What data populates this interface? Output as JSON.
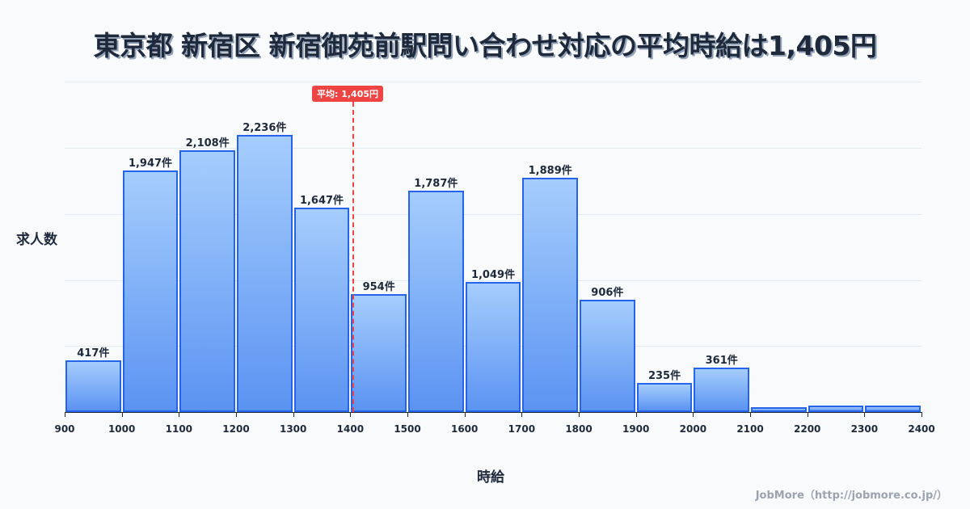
{
  "title": "東京都 新宿区 新宿御苑前駅問い合わせ対応の平均時給は1,405円",
  "y_axis_label": "求人数",
  "x_axis_label": "時給",
  "average_badge": "平均: 1,405円",
  "credit": "JobMore（http://jobmore.co.jp/）",
  "colors": {
    "bar_fill_top": "#a5cdfc",
    "bar_fill_bottom": "#5b93f2",
    "bar_border": "#2563eb",
    "average_line": "#ef4444",
    "text": "#1e293b"
  },
  "chart_data": {
    "type": "bar",
    "title": "東京都 新宿区 新宿御苑前駅問い合わせ対応の平均時給は1,405円",
    "xlabel": "時給",
    "ylabel": "求人数",
    "bins": [
      [
        900,
        1000
      ],
      [
        1000,
        1100
      ],
      [
        1100,
        1200
      ],
      [
        1200,
        1300
      ],
      [
        1300,
        1400
      ],
      [
        1400,
        1500
      ],
      [
        1500,
        1600
      ],
      [
        1600,
        1700
      ],
      [
        1700,
        1800
      ],
      [
        1800,
        1900
      ],
      [
        1900,
        2000
      ],
      [
        2000,
        2100
      ],
      [
        2100,
        2200
      ],
      [
        2200,
        2300
      ],
      [
        2300,
        2400
      ]
    ],
    "categories": [
      "900-1000",
      "1000-1100",
      "1100-1200",
      "1200-1300",
      "1300-1400",
      "1400-1500",
      "1500-1600",
      "1600-1700",
      "1700-1800",
      "1800-1900",
      "1900-2000",
      "2000-2100",
      "2100-2200",
      "2200-2300",
      "2300-2400"
    ],
    "values": [
      417,
      1947,
      2108,
      2236,
      1647,
      954,
      1787,
      1049,
      1889,
      906,
      235,
      361,
      39,
      52,
      52
    ],
    "labels": [
      "417件",
      "1,947件",
      "2,108件",
      "2,236件",
      "1,647件",
      "954件",
      "1,787件",
      "1,049件",
      "1,889件",
      "906件",
      "235件",
      "361件",
      "",
      "",
      ""
    ],
    "x_ticks": [
      "900",
      "1000",
      "1100",
      "1200",
      "1300",
      "1400",
      "1500",
      "1600",
      "1700",
      "1800",
      "1900",
      "2000",
      "2100",
      "2200",
      "2300",
      "2400"
    ],
    "average": 1405,
    "grid": true,
    "ylim": [
      0,
      2700
    ]
  }
}
